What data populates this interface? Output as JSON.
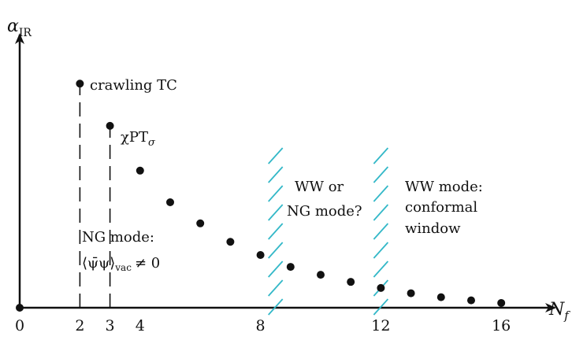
{
  "chart_data": {
    "type": "scatter",
    "axes": {
      "y_label": "α",
      "y_label_sub": "IR",
      "x_label": "N",
      "x_label_sub": "f",
      "x_ticks": [
        "0",
        "2",
        "3",
        "4",
        "8",
        "12",
        "16"
      ],
      "x_range": [
        0,
        17
      ]
    },
    "points": [
      {
        "x": 0,
        "y": 0
      },
      {
        "x": 2,
        "y": 0.85
      },
      {
        "x": 3,
        "y": 0.69
      },
      {
        "x": 4,
        "y": 0.52
      },
      {
        "x": 5,
        "y": 0.4
      },
      {
        "x": 6,
        "y": 0.32
      },
      {
        "x": 7,
        "y": 0.25
      },
      {
        "x": 8,
        "y": 0.2
      },
      {
        "x": 9,
        "y": 0.155
      },
      {
        "x": 10,
        "y": 0.125
      },
      {
        "x": 11,
        "y": 0.098
      },
      {
        "x": 12,
        "y": 0.075
      },
      {
        "x": 13,
        "y": 0.055
      },
      {
        "x": 14,
        "y": 0.04
      },
      {
        "x": 15,
        "y": 0.028
      },
      {
        "x": 16,
        "y": 0.018
      }
    ],
    "dashed_verticals": [
      2,
      3
    ],
    "hatched_boundaries": [
      8.5,
      12
    ],
    "hatch_color": "#33b8c8"
  },
  "annotations": {
    "crawling": "crawling TC",
    "chipt_main": "χPT",
    "chipt_sub": "σ",
    "ng_mode": "NG mode:",
    "condensate_main": "⟨ψ̄ψ⟩",
    "condensate_sub": "vac",
    "condensate_rel": "≠ 0",
    "ww_or_line1": "WW or",
    "ww_or_line2": "NG mode?",
    "ww_mode_line1": "WW mode:",
    "ww_mode_line2": "conformal",
    "ww_mode_line3": "window"
  }
}
